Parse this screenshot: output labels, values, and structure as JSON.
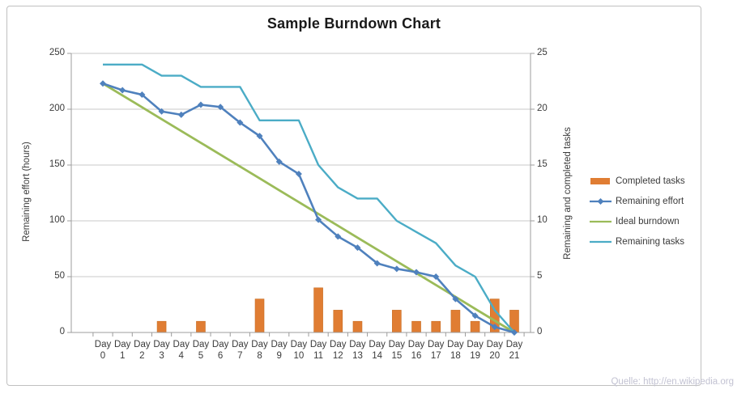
{
  "footer": {
    "source_text": "Quelle: http://en.wikipedia.org"
  },
  "colors": {
    "completed_tasks": "#E07D33",
    "completed_tasks_border": "#C86E24",
    "remaining_effort": "#4F81BD",
    "ideal_burndown": "#9BBB59",
    "remaining_tasks": "#4BACC6",
    "gridline": "#C9C9C9",
    "axis_line": "#9C9C9C",
    "tick_text": "#3A3A3A"
  },
  "chart_data": {
    "type": "bar",
    "title": "Sample Burndown Chart",
    "grid": true,
    "legend_position": "right",
    "categories": [
      "Day 0",
      "Day 1",
      "Day 2",
      "Day 3",
      "Day 4",
      "Day 5",
      "Day 6",
      "Day 7",
      "Day 8",
      "Day 9",
      "Day 10",
      "Day 11",
      "Day 12",
      "Day 13",
      "Day 14",
      "Day 15",
      "Day 16",
      "Day 17",
      "Day 18",
      "Day 19",
      "Day 20",
      "Day 21"
    ],
    "left_axis": {
      "label": "Remaining effort (hours)",
      "min": 0,
      "max": 250,
      "ticks": [
        250,
        200,
        150,
        100,
        50,
        0
      ]
    },
    "right_axis": {
      "label": "Remaining and completed tasks",
      "min": 0,
      "max": 25,
      "ticks": [
        25,
        20,
        15,
        10,
        5,
        0
      ]
    },
    "series": [
      {
        "name": "Completed tasks",
        "type": "bar",
        "axis": "right",
        "color": "#E07D33",
        "values": [
          0,
          0,
          0,
          1,
          0,
          1,
          0,
          0,
          3,
          0,
          0,
          4,
          2,
          1,
          0,
          2,
          1,
          1,
          2,
          1,
          3,
          2
        ]
      },
      {
        "name": "Remaining effort",
        "type": "line",
        "marker": "diamond",
        "axis": "left",
        "color": "#4F81BD",
        "values": [
          223,
          217,
          213,
          198,
          195,
          204,
          202,
          188,
          176,
          153,
          142,
          101,
          86,
          76,
          62,
          57,
          54,
          50,
          30,
          15,
          5,
          0
        ]
      },
      {
        "name": "Ideal burndown",
        "type": "line",
        "axis": "left",
        "color": "#9BBB59",
        "values": [
          223,
          212.4,
          201.8,
          191.1,
          180.5,
          169.9,
          159.3,
          148.7,
          138.1,
          127.4,
          116.8,
          106.2,
          95.6,
          84.9,
          74.3,
          63.7,
          53.1,
          42.5,
          31.9,
          21.2,
          10.6,
          0
        ]
      },
      {
        "name": "Remaining tasks",
        "type": "line",
        "axis": "right",
        "color": "#4BACC6",
        "values": [
          24,
          24,
          24,
          23,
          23,
          22,
          22,
          22,
          19,
          19,
          19,
          15,
          13,
          12,
          12,
          10,
          9,
          8,
          6,
          5,
          2,
          0
        ]
      }
    ]
  }
}
